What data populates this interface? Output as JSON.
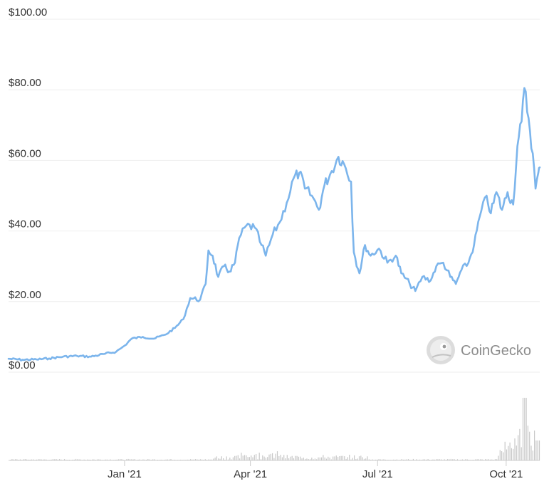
{
  "chart_data": {
    "type": "line",
    "title": "",
    "xlabel": "",
    "ylabel": "",
    "x_range": [
      "2020-10-10",
      "2021-10-25"
    ],
    "ylim": [
      0,
      100
    ],
    "y_ticks": [
      {
        "value": 0,
        "label": "$0.00"
      },
      {
        "value": 20,
        "label": "$20.00"
      },
      {
        "value": 40,
        "label": "$40.00"
      },
      {
        "value": 60,
        "label": "$60.00"
      },
      {
        "value": 80,
        "label": "$80.00"
      },
      {
        "value": 100,
        "label": "$100.00"
      }
    ],
    "x_ticks": [
      {
        "date": "2021-01-01",
        "label": "Jan '21"
      },
      {
        "date": "2021-04-01",
        "label": "Apr '21"
      },
      {
        "date": "2021-07-01",
        "label": "Jul '21"
      },
      {
        "date": "2021-10-01",
        "label": "Oct '21"
      }
    ],
    "grid": true,
    "line_color": "#7cb5ec",
    "volume_color": "#c8c8c8",
    "series": [
      {
        "values": [
          [
            "2020-10-10",
            3.8
          ],
          [
            "2020-10-20",
            3.5
          ],
          [
            "2020-10-30",
            3.6
          ],
          [
            "2020-11-08",
            3.9
          ],
          [
            "2020-11-18",
            4.4
          ],
          [
            "2020-11-28",
            4.6
          ],
          [
            "2020-12-08",
            4.4
          ],
          [
            "2020-12-18",
            5.2
          ],
          [
            "2020-12-26",
            5.8
          ],
          [
            "2021-01-01",
            7.5
          ],
          [
            "2021-01-06",
            9.5
          ],
          [
            "2021-01-14",
            10.0
          ],
          [
            "2021-01-22",
            9.5
          ],
          [
            "2021-01-30",
            10.6
          ],
          [
            "2021-02-06",
            12.5
          ],
          [
            "2021-02-12",
            15.0
          ],
          [
            "2021-02-17",
            21.0
          ],
          [
            "2021-02-24",
            20.5
          ],
          [
            "2021-02-28",
            25.0
          ],
          [
            "2021-03-02",
            34.5
          ],
          [
            "2021-03-05",
            33.0
          ],
          [
            "2021-03-09",
            27.0
          ],
          [
            "2021-03-13",
            30.0
          ],
          [
            "2021-03-17",
            28.5
          ],
          [
            "2021-03-21",
            31.0
          ],
          [
            "2021-03-24",
            38.0
          ],
          [
            "2021-03-29",
            41.5
          ],
          [
            "2021-04-04",
            41.0
          ],
          [
            "2021-04-09",
            36.0
          ],
          [
            "2021-04-12",
            33.0
          ],
          [
            "2021-04-17",
            39.0
          ],
          [
            "2021-04-22",
            42.5
          ],
          [
            "2021-04-27",
            48.0
          ],
          [
            "2021-05-02",
            55.0
          ],
          [
            "2021-05-06",
            56.5
          ],
          [
            "2021-05-10",
            52.0
          ],
          [
            "2021-05-15",
            50.0
          ],
          [
            "2021-05-20",
            46.0
          ],
          [
            "2021-05-24",
            53.0
          ],
          [
            "2021-05-28",
            56.0
          ],
          [
            "2021-06-03",
            61.0
          ],
          [
            "2021-06-07",
            59.0
          ],
          [
            "2021-06-12",
            54.0
          ],
          [
            "2021-06-14",
            34.0
          ],
          [
            "2021-06-18",
            28.0
          ],
          [
            "2021-06-22",
            36.0
          ],
          [
            "2021-06-26",
            33.0
          ],
          [
            "2021-07-02",
            35.0
          ],
          [
            "2021-07-08",
            31.0
          ],
          [
            "2021-07-14",
            33.0
          ],
          [
            "2021-07-18",
            28.0
          ],
          [
            "2021-07-24",
            25.0
          ],
          [
            "2021-07-28",
            23.0
          ],
          [
            "2021-08-02",
            27.0
          ],
          [
            "2021-08-08",
            26.0
          ],
          [
            "2021-08-12",
            30.0
          ],
          [
            "2021-08-17",
            31.0
          ],
          [
            "2021-08-22",
            27.0
          ],
          [
            "2021-08-26",
            25.0
          ],
          [
            "2021-08-30",
            29.0
          ],
          [
            "2021-09-04",
            31.0
          ],
          [
            "2021-09-08",
            36.0
          ],
          [
            "2021-09-12",
            44.0
          ],
          [
            "2021-09-17",
            50.0
          ],
          [
            "2021-09-20",
            45.0
          ],
          [
            "2021-09-24",
            51.0
          ],
          [
            "2021-09-28",
            46.0
          ],
          [
            "2021-10-02",
            51.0
          ],
          [
            "2021-10-06",
            47.5
          ],
          [
            "2021-10-09",
            64.0
          ],
          [
            "2021-10-12",
            71.0
          ],
          [
            "2021-10-14",
            80.5
          ],
          [
            "2021-10-17",
            72.0
          ],
          [
            "2021-10-20",
            62.0
          ],
          [
            "2021-10-22",
            52.0
          ],
          [
            "2021-10-24",
            56.5
          ],
          [
            "2021-10-25",
            58.0
          ]
        ]
      }
    ]
  },
  "watermark": {
    "text": "CoinGecko",
    "icon": "gecko-logo-icon"
  }
}
